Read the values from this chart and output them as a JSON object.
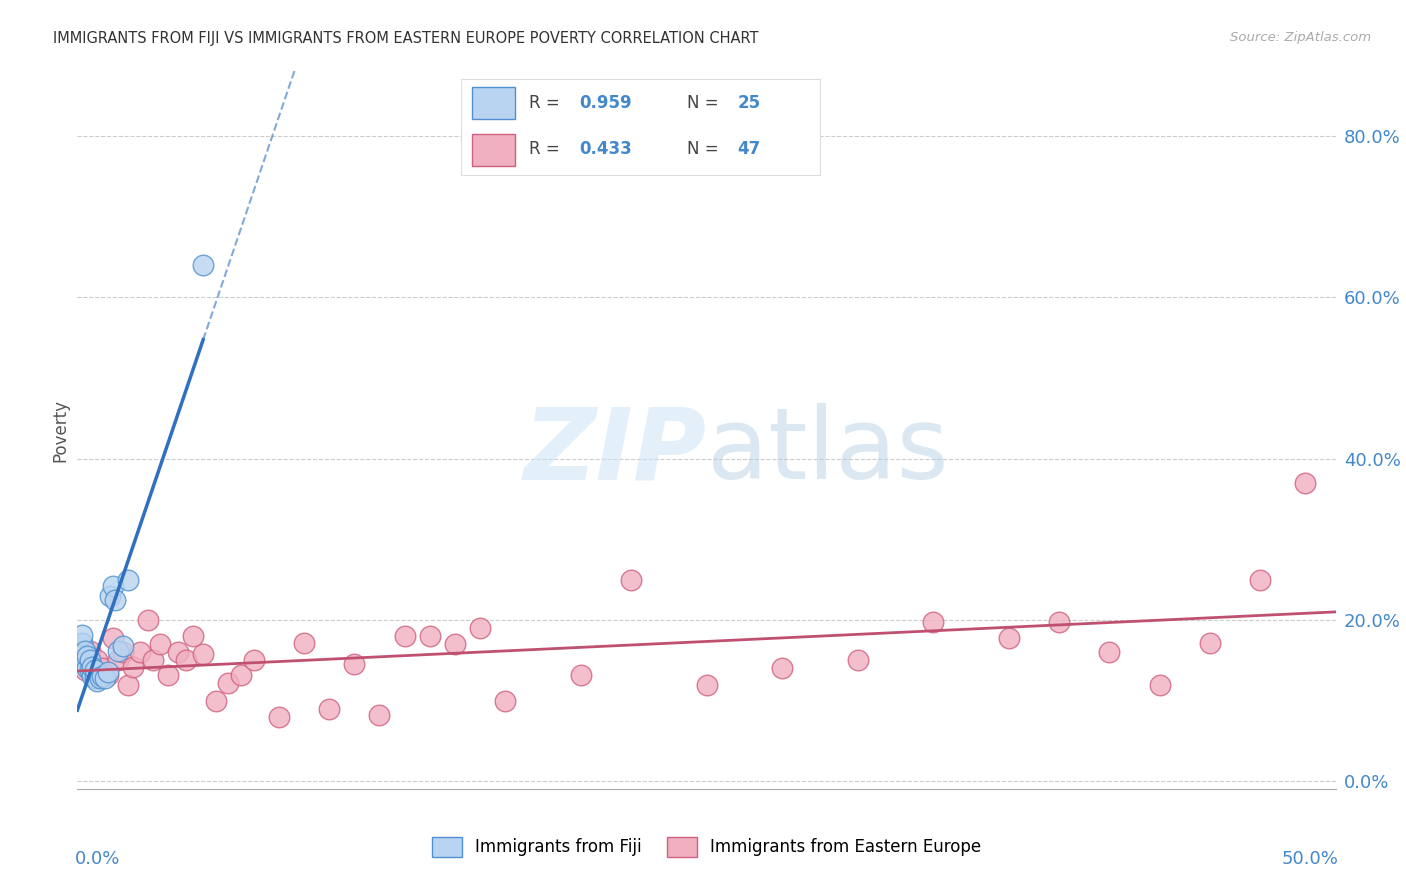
{
  "title": "IMMIGRANTS FROM FIJI VS IMMIGRANTS FROM EASTERN EUROPE POVERTY CORRELATION CHART",
  "source": "Source: ZipAtlas.com",
  "ylabel": "Poverty",
  "ytick_labels": [
    "0.0%",
    "20.0%",
    "40.0%",
    "60.0%",
    "80.0%"
  ],
  "ytick_values": [
    0.0,
    0.2,
    0.4,
    0.6,
    0.8
  ],
  "xlim": [
    0.0,
    0.5
  ],
  "ylim": [
    -0.01,
    0.88
  ],
  "fiji_R": "0.959",
  "fiji_N": "25",
  "eastern_R": "0.433",
  "eastern_N": "47",
  "fiji_face_color": "#b8d4f0",
  "fiji_edge_color": "#5090d0",
  "fiji_line_color": "#3070c0",
  "eastern_face_color": "#f0b0c0",
  "eastern_edge_color": "#d06080",
  "eastern_line_color": "#c05070",
  "background_color": "#ffffff",
  "grid_color": "#cccccc",
  "blue_text_color": "#4488cc",
  "fiji_points_x": [
    0.001,
    0.002,
    0.002,
    0.003,
    0.003,
    0.004,
    0.004,
    0.005,
    0.005,
    0.006,
    0.006,
    0.007,
    0.007,
    0.008,
    0.009,
    0.01,
    0.011,
    0.012,
    0.013,
    0.014,
    0.015,
    0.016,
    0.018,
    0.02,
    0.05
  ],
  "fiji_points_y": [
    0.162,
    0.172,
    0.182,
    0.148,
    0.162,
    0.14,
    0.155,
    0.138,
    0.15,
    0.13,
    0.142,
    0.128,
    0.138,
    0.125,
    0.128,
    0.13,
    0.128,
    0.135,
    0.23,
    0.242,
    0.225,
    0.162,
    0.168,
    0.25,
    0.64
  ],
  "eastern_points_x": [
    0.003,
    0.005,
    0.007,
    0.008,
    0.01,
    0.012,
    0.014,
    0.016,
    0.018,
    0.02,
    0.022,
    0.025,
    0.028,
    0.03,
    0.033,
    0.036,
    0.04,
    0.043,
    0.046,
    0.05,
    0.055,
    0.06,
    0.065,
    0.07,
    0.08,
    0.09,
    0.1,
    0.11,
    0.12,
    0.13,
    0.14,
    0.15,
    0.16,
    0.17,
    0.2,
    0.22,
    0.25,
    0.28,
    0.31,
    0.34,
    0.37,
    0.39,
    0.41,
    0.43,
    0.45,
    0.47,
    0.488
  ],
  "eastern_points_y": [
    0.138,
    0.162,
    0.128,
    0.15,
    0.14,
    0.132,
    0.178,
    0.15,
    0.16,
    0.12,
    0.142,
    0.16,
    0.2,
    0.15,
    0.17,
    0.132,
    0.16,
    0.15,
    0.18,
    0.158,
    0.1,
    0.122,
    0.132,
    0.15,
    0.08,
    0.172,
    0.09,
    0.145,
    0.082,
    0.18,
    0.18,
    0.17,
    0.19,
    0.1,
    0.132,
    0.25,
    0.12,
    0.14,
    0.15,
    0.198,
    0.178,
    0.198,
    0.16,
    0.12,
    0.172,
    0.25,
    0.37
  ]
}
